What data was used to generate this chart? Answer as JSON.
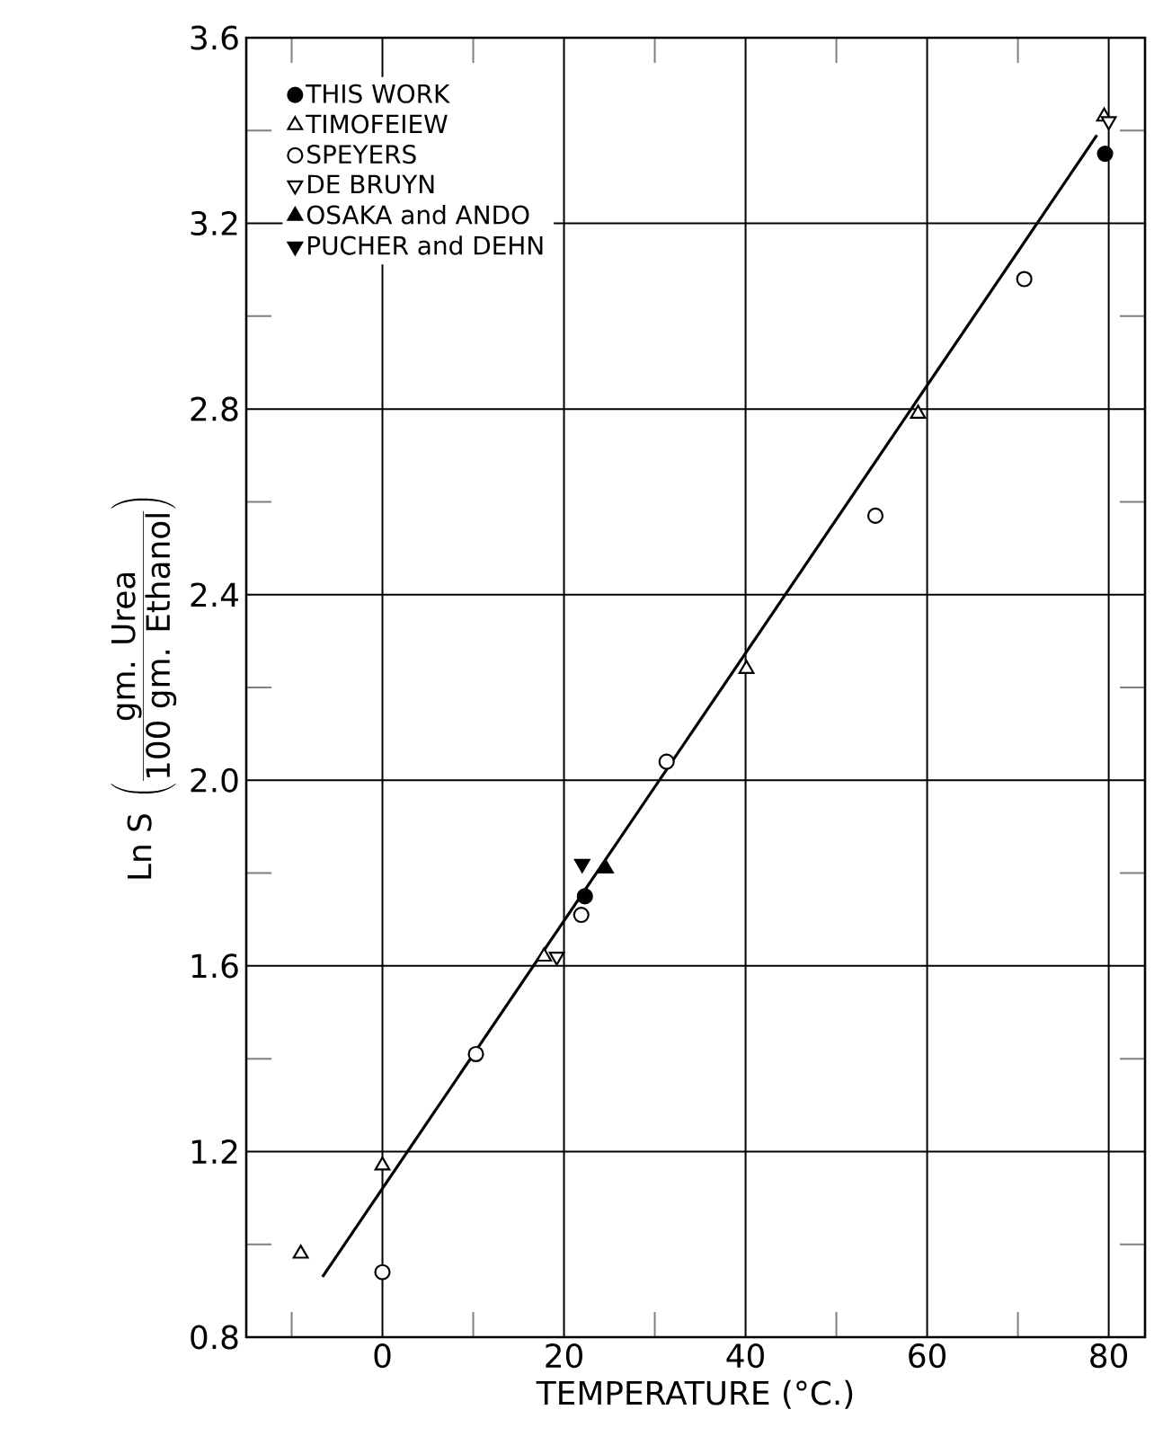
{
  "chart_data": {
    "type": "scatter",
    "xlabel": "TEMPERATURE (°C.)",
    "ylabel": "\\mathrm{Ln\\ S}\\;\\left(\\frac{\\mbox{gm. Urea}}{\\mbox{100 gm. Ethanol}}\\right)",
    "xlim": [
      -15,
      84
    ],
    "ylim": [
      0.8,
      3.6
    ],
    "xticks": [
      {
        "value": -10,
        "label": null
      },
      0,
      {
        "value": 10,
        "label": null
      },
      20,
      {
        "value": 30,
        "label": null
      },
      40,
      {
        "value": 50,
        "label": null
      },
      60,
      {
        "value": 70,
        "label": null
      },
      80
    ],
    "yticks": [
      0.8,
      {
        "value": 1.0,
        "label": null
      },
      1.2,
      {
        "value": 1.4,
        "label": null
      },
      1.6,
      {
        "value": 1.8,
        "label": null
      },
      {
        "value": 2.0,
        "label": "2.0"
      },
      {
        "value": 2.2,
        "label": null
      },
      2.4,
      {
        "value": 2.6,
        "label": null
      },
      2.8,
      {
        "value": 3.0,
        "label": null
      },
      3.2,
      {
        "value": 3.4,
        "label": null
      },
      3.6
    ],
    "grid": true,
    "legend": "top left",
    "series": [
      {
        "name": "THIS WORK",
        "color": "#000000",
        "marker": "circle",
        "x": [
          22.3,
          79.6
        ],
        "values": [
          1.75,
          3.35
        ]
      },
      {
        "name": "TIMOFEIEW",
        "color": "#000000",
        "marker": "triangle-open",
        "x": [
          -9,
          0,
          17.8,
          40.1,
          59,
          79.5
        ],
        "values": [
          0.98,
          1.17,
          1.62,
          2.24,
          2.79,
          3.43
        ]
      },
      {
        "name": "SPEYERS",
        "color": "#000000",
        "marker": "circle-open",
        "x": [
          0,
          10.3,
          21.9,
          31.3,
          54.3,
          70.7
        ],
        "values": [
          0.94,
          1.41,
          1.71,
          2.04,
          2.57,
          3.08
        ]
      },
      {
        "name": "DE BRUYN",
        "color": "#000000",
        "marker": "triangle-down-open",
        "x": [
          19.2,
          80
        ],
        "values": [
          1.62,
          3.42
        ]
      },
      {
        "name": "OSAKA and ANDO",
        "color": "#000000",
        "marker": "triangle",
        "x": [
          24.6
        ],
        "values": [
          1.81
        ]
      },
      {
        "name": "PUCHER and DEHN",
        "color": "#000000",
        "marker": "triangle-down",
        "x": [
          22.0
        ],
        "values": [
          1.82
        ]
      },
      {
        "type": "line",
        "color": "#000000",
        "marker": "none",
        "line_style": "solid",
        "x": [
          -6.6,
          78.7
        ],
        "values": [
          0.93,
          3.39
        ]
      }
    ]
  }
}
